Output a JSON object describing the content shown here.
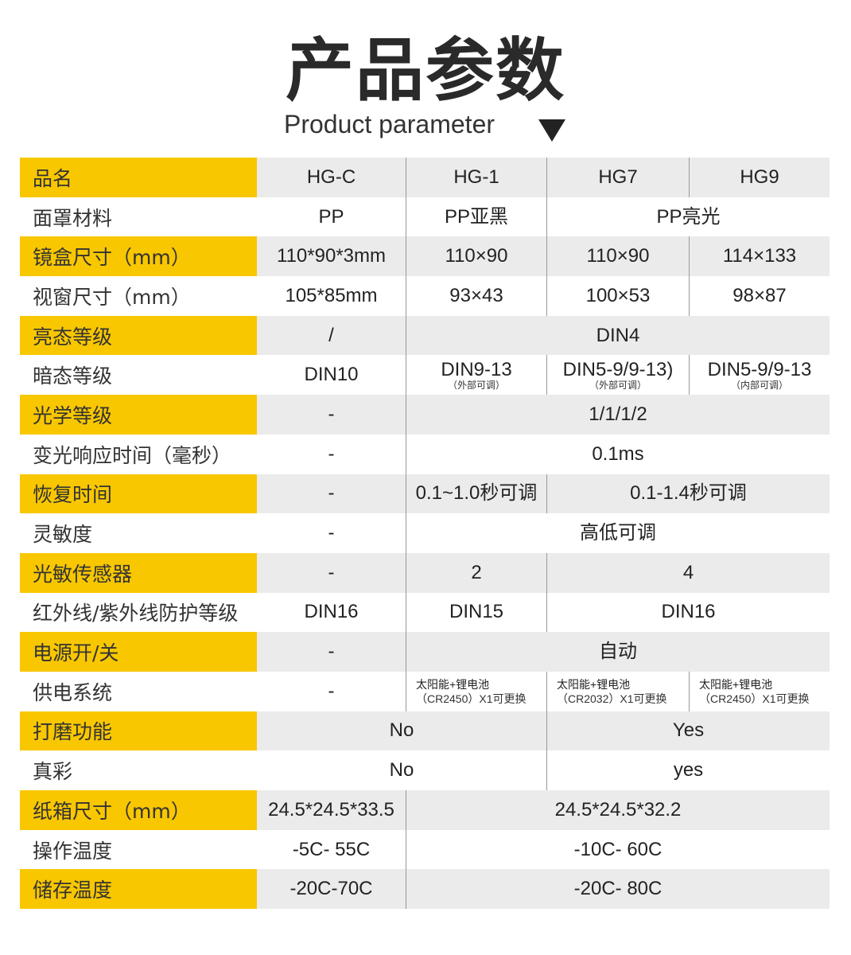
{
  "header": {
    "title": "产品参数",
    "subtitle": "Product parameter"
  },
  "colors": {
    "label_yellow": "#f8c700",
    "row_grey": "#ebebeb"
  },
  "rows": [
    {
      "label": "品名",
      "cells": [
        {
          "text": "HG-C"
        },
        {
          "text": "HG-1"
        },
        {
          "text": "HG7"
        },
        {
          "text": "HG9"
        }
      ]
    },
    {
      "label": "面罩材料",
      "cells": [
        {
          "text": "PP"
        },
        {
          "text": "PP亚黑"
        },
        {
          "text": "PP亮光",
          "span": 2
        }
      ]
    },
    {
      "label": "镜盒尺寸（mm）",
      "cells": [
        {
          "text": "110*90*3mm"
        },
        {
          "text": "110×90"
        },
        {
          "text": "110×90"
        },
        {
          "text": "114×133"
        }
      ]
    },
    {
      "label": "视窗尺寸（mm）",
      "cells": [
        {
          "text": "105*85mm"
        },
        {
          "text": "93×43"
        },
        {
          "text": "100×53"
        },
        {
          "text": "98×87"
        }
      ]
    },
    {
      "label": "亮态等级",
      "cells": [
        {
          "text": "/"
        },
        {
          "text": "DIN4",
          "span": 3
        }
      ]
    },
    {
      "label": "暗态等级",
      "cells": [
        {
          "text": "DIN10"
        },
        {
          "text": "DIN9-13",
          "sub": "（外部可调）"
        },
        {
          "text": "DIN5-9/9-13)",
          "sub": "（外部可调）"
        },
        {
          "text": "DIN5-9/9-13",
          "sub": "（内部可调）"
        }
      ]
    },
    {
      "label": "光学等级",
      "cells": [
        {
          "text": "-"
        },
        {
          "text": "1/1/1/2",
          "span": 3
        }
      ]
    },
    {
      "label": "变光响应时间（毫秒）",
      "cells": [
        {
          "text": "-"
        },
        {
          "text": "0.1ms",
          "span": 3
        }
      ]
    },
    {
      "label": "恢复时间",
      "cells": [
        {
          "text": "-"
        },
        {
          "text": "0.1~1.0秒可调"
        },
        {
          "text": "0.1-1.4秒可调",
          "span": 2
        }
      ]
    },
    {
      "label": "灵敏度",
      "cells": [
        {
          "text": "-"
        },
        {
          "text": "高低可调",
          "span": 3
        }
      ]
    },
    {
      "label": "光敏传感器",
      "cells": [
        {
          "text": "-"
        },
        {
          "text": "2"
        },
        {
          "text": "4",
          "span": 2
        }
      ]
    },
    {
      "label": "红外线/紫外线防护等级",
      "cells": [
        {
          "text": "DIN16"
        },
        {
          "text": "DIN15"
        },
        {
          "text": "DIN16",
          "span": 2
        }
      ]
    },
    {
      "label": "电源开/关",
      "cells": [
        {
          "text": "-"
        },
        {
          "text": "自动",
          "span": 3
        }
      ]
    },
    {
      "label": "供电系统",
      "cells": [
        {
          "text": "-"
        },
        {
          "text": "太阳能+锂电池",
          "sub": "（CR2450）X1可更换",
          "small": true
        },
        {
          "text": "太阳能+锂电池",
          "sub": "（CR2032）X1可更换",
          "small": true
        },
        {
          "text": "太阳能+锂电池",
          "sub": "（CR2450）X1可更换",
          "small": true
        }
      ]
    },
    {
      "label": "打磨功能",
      "cells": [
        {
          "text": "No",
          "span": 2
        },
        {
          "text": "Yes",
          "span": 2
        }
      ]
    },
    {
      "label": "真彩",
      "cells": [
        {
          "text": "No",
          "span": 2
        },
        {
          "text": "yes",
          "span": 2
        }
      ]
    },
    {
      "label": "纸箱尺寸（mm）",
      "cells": [
        {
          "text": "24.5*24.5*33.5"
        },
        {
          "text": "24.5*24.5*32.2",
          "span": 3
        }
      ]
    },
    {
      "label": "操作温度",
      "cells": [
        {
          "text": "-5C- 55C"
        },
        {
          "text": "-10C- 60C",
          "span": 3
        }
      ]
    },
    {
      "label": "储存温度",
      "cells": [
        {
          "text": "-20C-70C"
        },
        {
          "text": "-20C- 80C",
          "span": 3
        }
      ]
    }
  ]
}
